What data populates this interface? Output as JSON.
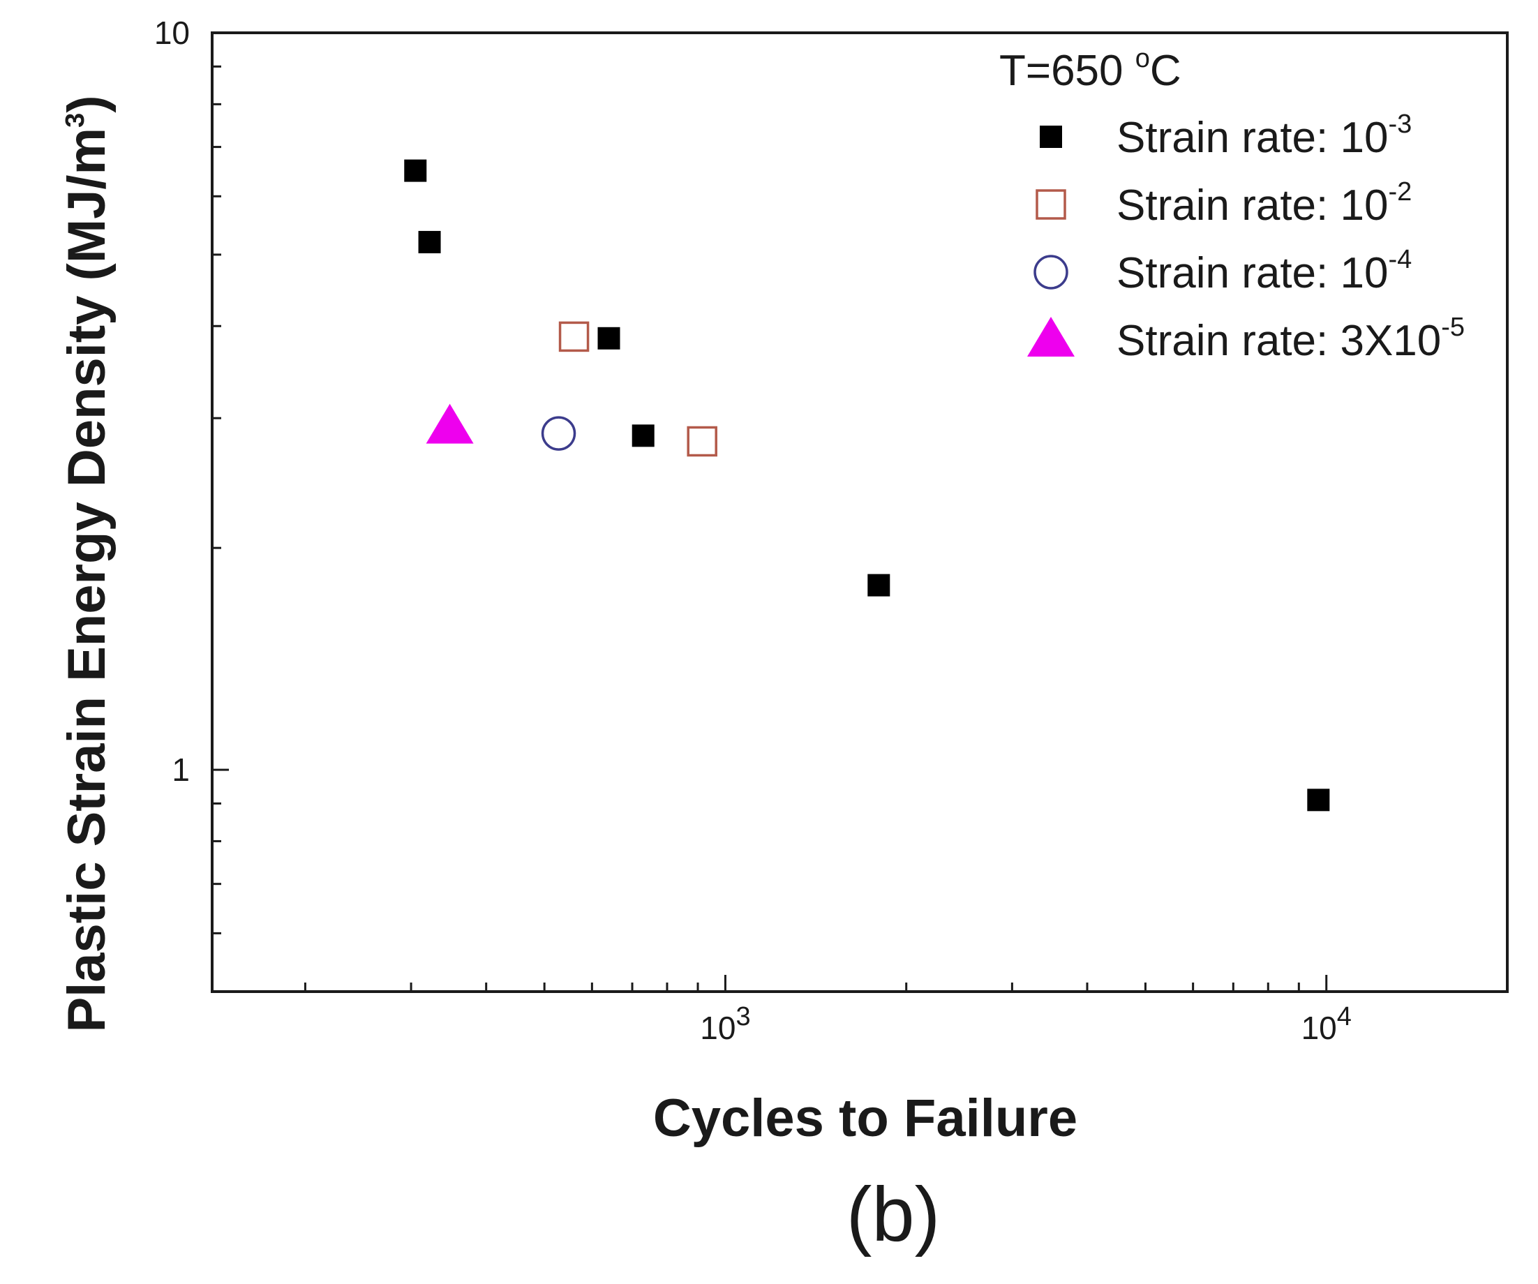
{
  "chart_data": {
    "type": "scatter",
    "title": "",
    "xlabel": "Cycles to Failure",
    "ylabel": "Plastic Strain Energy Density (MJ/m",
    "ylabel_sup": "3",
    "ylabel_suffix": ")",
    "xscale": "log",
    "yscale": "log",
    "xlim": [
      140,
      20000
    ],
    "ylim": [
      0.5,
      10
    ],
    "x_ticks": [
      {
        "value": 1000,
        "base": "10",
        "exp": "3"
      },
      {
        "value": 10000,
        "base": "10",
        "exp": "4"
      }
    ],
    "y_ticks": [
      {
        "value": 1,
        "label": "1"
      },
      {
        "value": 10,
        "label": "10"
      }
    ],
    "annotation": {
      "text": "T=650 ",
      "sup": "o",
      "suffix": "C"
    },
    "caption": "(b)",
    "legend_position": "top-right",
    "series": [
      {
        "name": "Strain rate: 10",
        "name_sup": "-3",
        "marker": "filled-square",
        "color": "#000000",
        "x": [
          305,
          322,
          640,
          730,
          1800,
          9700
        ],
        "y": [
          6.5,
          5.2,
          3.85,
          2.84,
          1.78,
          0.91
        ]
      },
      {
        "name": "Strain rate: 10",
        "name_sup": "-2",
        "marker": "open-square",
        "color": "#b35a4a",
        "x": [
          560,
          915
        ],
        "y": [
          3.87,
          2.79
        ]
      },
      {
        "name": "Strain rate: 10",
        "name_sup": "-4",
        "marker": "open-circle",
        "color": "#3c3c8c",
        "x": [
          528
        ],
        "y": [
          2.86
        ]
      },
      {
        "name": "Strain rate: 3X10",
        "name_sup": "-5",
        "marker": "filled-triangle",
        "color": "#ee00ee",
        "x": [
          348
        ],
        "y": [
          2.92
        ]
      }
    ]
  }
}
